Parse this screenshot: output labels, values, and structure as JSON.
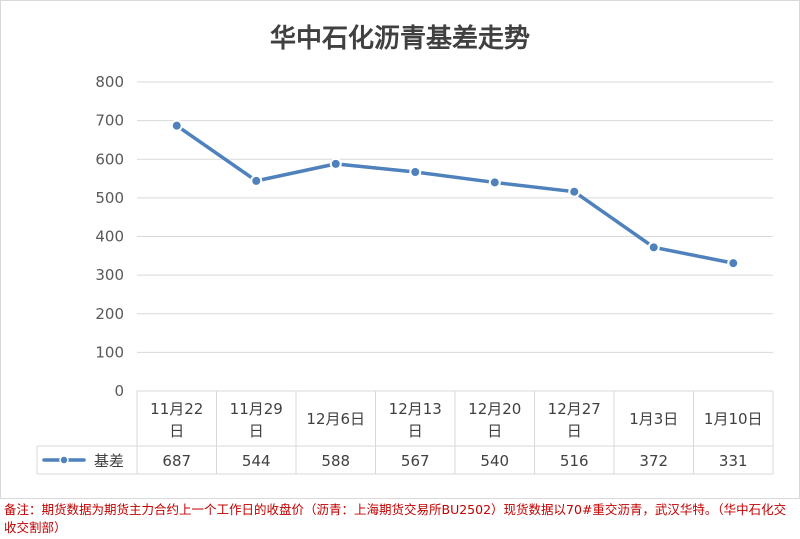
{
  "chart_data": {
    "type": "line",
    "title": "华中石化沥青基差走势",
    "categories": [
      "11月22日",
      "11月29日",
      "12月6日",
      "12月13日",
      "12月20日",
      "12月27日",
      "1月3日",
      "1月10日"
    ],
    "series": [
      {
        "name": "基差",
        "values": [
          687,
          544,
          588,
          567,
          540,
          516,
          372,
          331
        ],
        "color": "#4f81bd"
      }
    ],
    "ylim": [
      0,
      800
    ],
    "yticks": [
      0,
      100,
      200,
      300,
      400,
      500,
      600,
      700,
      800
    ],
    "grid": true,
    "legend": "data-table-left"
  },
  "note": "备注：期货数据为期货主力合约上一个工作日的收盘价（沥青：上海期货交易所BU2502）现货数据以70#重交沥青，武汉华特。（华中石化交收交割部）",
  "colors": {
    "series": "#4f81bd",
    "grid": "#d9d9d9",
    "note": "#c00000"
  }
}
